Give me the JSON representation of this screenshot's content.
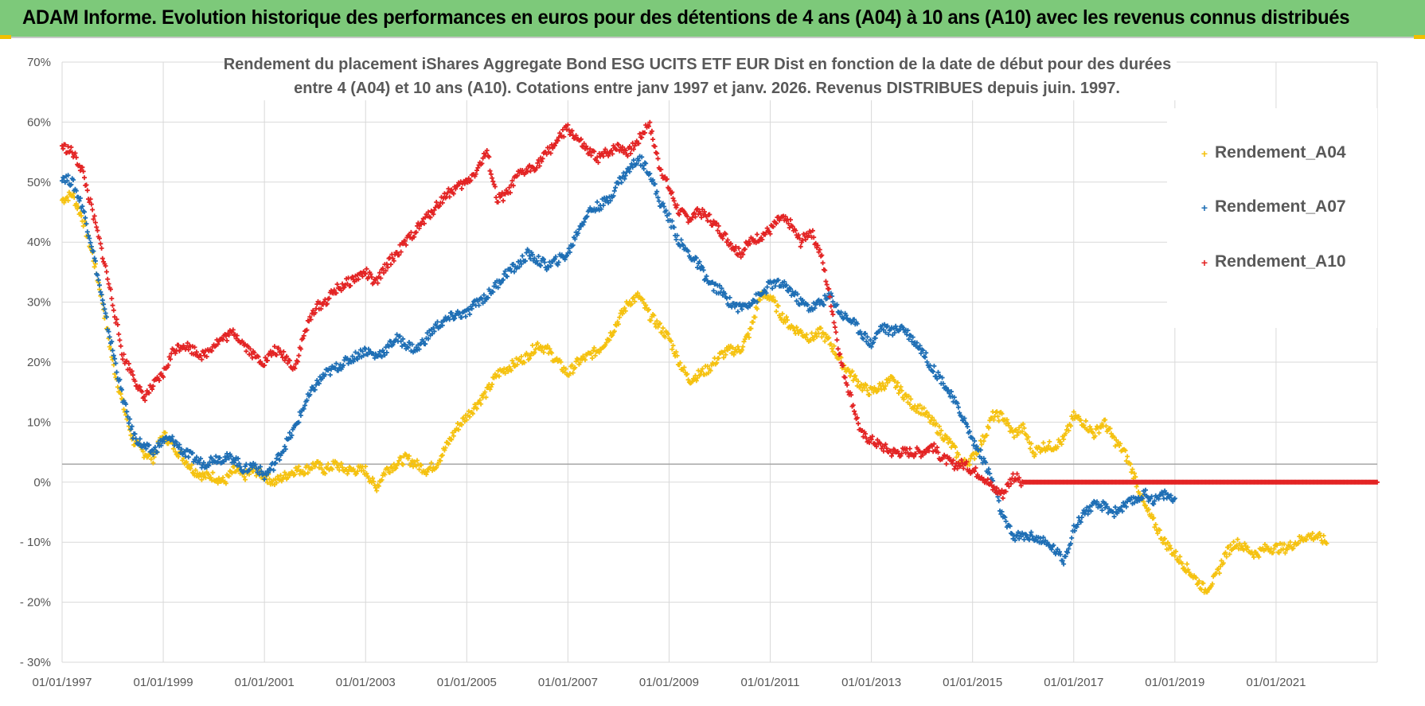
{
  "header": {
    "title": "ADAM Informe. Evolution historique des performances en euros pour des détentions de 4 ans (A04) à 10 ans (A10) avec les revenus connus distribués"
  },
  "chart_data": {
    "type": "scatter",
    "title_lines": [
      "Rendement du placement iShares Aggregate Bond ESG UCITS ETF EUR Dist en fonction de la date de début pour des durées",
      "entre 4 (A04) et 10 ans (A10).  Cotations entre janv 1997 et janv. 2026. Revenus DISTRIBUES depuis juin. 1997."
    ],
    "xlabel": "",
    "ylabel": "",
    "xlim": [
      1997.0,
      2023.0
    ],
    "ylim": [
      -30,
      70
    ],
    "yticks": [
      {
        "v": 70,
        "label": "70%"
      },
      {
        "v": 60,
        "label": "60%"
      },
      {
        "v": 50,
        "label": "50%"
      },
      {
        "v": 40,
        "label": "40%"
      },
      {
        "v": 30,
        "label": "30%"
      },
      {
        "v": 20,
        "label": "20%"
      },
      {
        "v": 10,
        "label": "10%"
      },
      {
        "v": 0,
        "label": "0%"
      },
      {
        "v": -10,
        "label": "- 10%"
      },
      {
        "v": -20,
        "label": "- 20%"
      },
      {
        "v": -30,
        "label": "- 30%"
      }
    ],
    "xticks": [
      {
        "v": 1997,
        "label": "01/01/1997"
      },
      {
        "v": 1999,
        "label": "01/01/1999"
      },
      {
        "v": 2001,
        "label": "01/01/2001"
      },
      {
        "v": 2003,
        "label": "01/01/2003"
      },
      {
        "v": 2005,
        "label": "01/01/2005"
      },
      {
        "v": 2007,
        "label": "01/01/2007"
      },
      {
        "v": 2009,
        "label": "01/01/2009"
      },
      {
        "v": 2011,
        "label": "01/01/2011"
      },
      {
        "v": 2013,
        "label": "01/01/2013"
      },
      {
        "v": 2015,
        "label": "01/01/2015"
      },
      {
        "v": 2017,
        "label": "01/01/2017"
      },
      {
        "v": 2019,
        "label": "01/01/2019"
      },
      {
        "v": 2021,
        "label": "01/01/2021"
      }
    ],
    "reference_line_y": 3,
    "legend_position": "top-right",
    "grid": true,
    "series": [
      {
        "name": "Rendement_A04",
        "color": "#f5c211",
        "x": [
          1997.0,
          1997.2,
          1997.4,
          1997.6,
          1997.8,
          1998.0,
          1998.2,
          1998.4,
          1998.6,
          1998.8,
          1999.0,
          1999.2,
          1999.4,
          1999.6,
          1999.8,
          2000.0,
          2000.2,
          2000.4,
          2000.6,
          2000.8,
          2001.0,
          2001.2,
          2001.4,
          2001.6,
          2001.8,
          2002.0,
          2002.2,
          2002.4,
          2002.6,
          2002.8,
          2003.0,
          2003.2,
          2003.4,
          2003.6,
          2003.8,
          2004.0,
          2004.2,
          2004.4,
          2004.6,
          2004.8,
          2005.0,
          2005.2,
          2005.4,
          2005.6,
          2005.8,
          2006.0,
          2006.2,
          2006.4,
          2006.6,
          2006.8,
          2007.0,
          2007.2,
          2007.4,
          2007.6,
          2007.8,
          2008.0,
          2008.2,
          2008.4,
          2008.6,
          2008.8,
          2009.0,
          2009.2,
          2009.4,
          2009.6,
          2009.8,
          2010.0,
          2010.2,
          2010.4,
          2010.6,
          2010.8,
          2011.0,
          2011.2,
          2011.4,
          2011.6,
          2011.8,
          2012.0,
          2012.2,
          2012.4,
          2012.6,
          2012.8,
          2013.0,
          2013.2,
          2013.4,
          2013.6,
          2013.8,
          2014.0,
          2014.2,
          2014.4,
          2014.6,
          2014.8,
          2015.0,
          2015.2,
          2015.4,
          2015.6,
          2015.8,
          2016.0,
          2016.2,
          2016.4,
          2016.6,
          2016.8,
          2017.0,
          2017.2,
          2017.4,
          2017.6,
          2017.8,
          2018.0,
          2018.2,
          2018.4,
          2018.6,
          2018.8,
          2019.0,
          2019.2,
          2019.4,
          2019.6,
          2019.8,
          2020.0,
          2020.2,
          2020.4,
          2020.6,
          2020.8,
          2021.0,
          2021.2,
          2021.4,
          2021.6,
          2021.8,
          2022.0
        ],
        "y": [
          47,
          48,
          44,
          38,
          30,
          20,
          13,
          7,
          5,
          4,
          8,
          6,
          4,
          2,
          1,
          1,
          0,
          2,
          1,
          2,
          1,
          0,
          1,
          2,
          2,
          3,
          2,
          3,
          2,
          2,
          2,
          -1,
          2,
          3,
          4,
          3,
          2,
          3,
          6,
          9,
          11,
          13,
          15,
          18,
          19,
          20,
          21,
          23,
          22,
          20,
          18,
          20,
          21,
          22,
          24,
          27,
          30,
          31,
          28,
          26,
          24,
          20,
          17,
          18,
          19,
          21,
          22,
          22,
          25,
          31,
          31,
          28,
          26,
          25,
          24,
          25,
          23,
          20,
          18,
          16,
          15,
          16,
          17,
          15,
          13,
          12,
          10,
          8,
          6,
          3,
          4,
          7,
          11,
          11,
          8,
          9,
          5,
          6,
          6,
          7,
          11,
          10,
          8,
          10,
          7,
          5,
          1,
          -4,
          -7,
          -10,
          -12,
          -14,
          -16,
          -18,
          -16,
          -12,
          -10,
          -11,
          -12,
          -11,
          -11,
          -11,
          -10,
          -9,
          -9,
          -10
        ]
      },
      {
        "name": "Rendement_A07",
        "color": "#1f6fb5",
        "x": [
          1997.0,
          1997.2,
          1997.4,
          1997.6,
          1997.8,
          1998.0,
          1998.2,
          1998.4,
          1998.6,
          1998.8,
          1999.0,
          1999.2,
          1999.4,
          1999.6,
          1999.8,
          2000.0,
          2000.2,
          2000.4,
          2000.6,
          2000.8,
          2001.0,
          2001.2,
          2001.4,
          2001.6,
          2001.8,
          2002.0,
          2002.2,
          2002.4,
          2002.6,
          2002.8,
          2003.0,
          2003.2,
          2003.4,
          2003.6,
          2003.8,
          2004.0,
          2004.2,
          2004.4,
          2004.6,
          2004.8,
          2005.0,
          2005.2,
          2005.4,
          2005.6,
          2005.8,
          2006.0,
          2006.2,
          2006.4,
          2006.6,
          2006.8,
          2007.0,
          2007.2,
          2007.4,
          2007.6,
          2007.8,
          2008.0,
          2008.2,
          2008.4,
          2008.6,
          2008.8,
          2009.0,
          2009.2,
          2009.4,
          2009.6,
          2009.8,
          2010.0,
          2010.2,
          2010.4,
          2010.6,
          2010.8,
          2011.0,
          2011.2,
          2011.4,
          2011.6,
          2011.8,
          2012.0,
          2012.2,
          2012.4,
          2012.6,
          2012.8,
          2013.0,
          2013.2,
          2013.4,
          2013.6,
          2013.8,
          2014.0,
          2014.2,
          2014.4,
          2014.6,
          2014.8,
          2015.0,
          2015.2,
          2015.4,
          2015.6,
          2015.8,
          2016.0,
          2016.2,
          2016.4,
          2016.6,
          2016.8,
          2017.0,
          2017.2,
          2017.4,
          2017.6,
          2017.8,
          2018.0,
          2018.2,
          2018.4,
          2018.6,
          2018.8,
          2019.0
        ],
        "y": [
          51,
          50,
          46,
          39,
          30,
          22,
          14,
          8,
          6,
          5,
          7,
          7,
          5,
          4,
          3,
          4,
          4,
          4,
          2,
          3,
          1,
          3,
          6,
          9,
          13,
          16,
          18,
          19,
          20,
          21,
          22,
          21,
          22,
          24,
          23,
          22,
          24,
          26,
          27,
          28,
          28,
          30,
          31,
          33,
          35,
          36,
          38,
          37,
          36,
          37,
          38,
          42,
          45,
          46,
          47,
          50,
          52,
          54,
          52,
          47,
          44,
          40,
          38,
          36,
          33,
          32,
          30,
          29,
          30,
          31,
          33,
          33,
          32,
          30,
          29,
          30,
          31,
          28,
          27,
          25,
          23,
          26,
          25,
          26,
          24,
          22,
          19,
          17,
          14,
          11,
          7,
          4,
          0,
          -6,
          -9,
          -9,
          -9,
          -10,
          -11,
          -13,
          -8,
          -5,
          -4,
          -4,
          -5,
          -4,
          -3,
          -2,
          -3,
          -2,
          -3
        ]
      },
      {
        "name": "Rendement_A10",
        "color": "#e32424",
        "x": [
          1997.0,
          1997.2,
          1997.4,
          1997.6,
          1997.8,
          1998.0,
          1998.2,
          1998.4,
          1998.6,
          1998.8,
          1999.0,
          1999.2,
          1999.4,
          1999.6,
          1999.8,
          2000.0,
          2000.2,
          2000.4,
          2000.6,
          2000.8,
          2001.0,
          2001.2,
          2001.4,
          2001.6,
          2001.8,
          2002.0,
          2002.2,
          2002.4,
          2002.6,
          2002.8,
          2003.0,
          2003.2,
          2003.4,
          2003.6,
          2003.8,
          2004.0,
          2004.2,
          2004.4,
          2004.6,
          2004.8,
          2005.0,
          2005.2,
          2005.4,
          2005.6,
          2005.8,
          2006.0,
          2006.2,
          2006.4,
          2006.6,
          2006.8,
          2007.0,
          2007.2,
          2007.4,
          2007.6,
          2007.8,
          2008.0,
          2008.2,
          2008.4,
          2008.6,
          2008.8,
          2009.0,
          2009.2,
          2009.4,
          2009.6,
          2009.8,
          2010.0,
          2010.2,
          2010.4,
          2010.6,
          2010.8,
          2011.0,
          2011.2,
          2011.4,
          2011.6,
          2011.8,
          2012.0,
          2012.2,
          2012.4,
          2012.6,
          2012.8,
          2013.0,
          2013.2,
          2013.4,
          2013.6,
          2013.8,
          2014.0,
          2014.2,
          2014.4,
          2014.6,
          2014.8,
          2015.0,
          2015.2,
          2015.4,
          2015.6,
          2015.8,
          2016.0,
          2016.2,
          2016.4,
          2016.6,
          2016.8,
          2017.0,
          2017.2,
          2017.4,
          2017.6,
          2017.8,
          2018.0,
          2018.2,
          2018.4,
          2018.6,
          2018.8,
          2019.0,
          2019.2,
          2019.4,
          2019.6,
          2019.8,
          2020.0,
          2020.2,
          2020.4,
          2020.6,
          2020.8,
          2021.0,
          2021.2,
          2021.4,
          2021.6,
          2021.8,
          2022.0,
          2022.2,
          2022.4,
          2022.6,
          2022.8,
          2023.0
        ],
        "y": [
          56,
          55,
          52,
          45,
          38,
          30,
          21,
          18,
          14,
          16,
          18,
          22,
          23,
          22,
          21,
          23,
          24,
          25,
          23,
          21,
          20,
          22,
          21,
          19,
          25,
          29,
          30,
          32,
          33,
          34,
          35,
          33,
          36,
          38,
          40,
          42,
          44,
          46,
          48,
          49,
          50,
          52,
          55,
          47,
          48,
          51,
          52,
          53,
          55,
          57,
          59,
          57,
          55,
          54,
          55,
          56,
          55,
          57,
          60,
          53,
          49,
          45,
          44,
          45,
          44,
          42,
          40,
          38,
          40,
          41,
          42,
          44,
          43,
          40,
          42,
          38,
          30,
          20,
          14,
          8,
          7,
          6,
          5,
          5,
          5,
          5,
          6,
          4,
          3,
          3,
          2,
          1,
          -1,
          -2,
          1,
          0,
          0,
          0,
          0,
          0,
          0,
          0,
          0,
          0,
          0,
          0,
          0,
          0,
          0,
          0,
          0,
          0,
          0,
          0,
          0,
          0,
          0,
          0,
          0,
          0,
          0,
          0,
          0,
          0,
          0,
          0,
          0,
          0,
          0,
          0,
          0
        ]
      }
    ]
  }
}
